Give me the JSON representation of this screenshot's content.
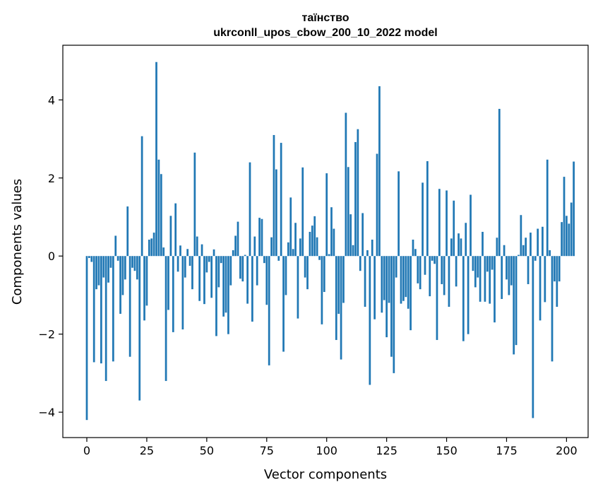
{
  "chart_data": {
    "type": "bar",
    "title": [
      "таїнство",
      "ukrconll_upos_cbow_200_10_2022 model"
    ],
    "xlabel": "Vector components",
    "ylabel": "Components values",
    "xlim": [
      -10,
      209
    ],
    "ylim": [
      -4.65,
      5.4
    ],
    "x_ticks": [
      0,
      25,
      50,
      75,
      100,
      125,
      150,
      175,
      200
    ],
    "y_ticks": [
      -4,
      -2,
      0,
      2,
      4
    ],
    "bar_color": "#1f77b4",
    "grid": false,
    "legend": "none",
    "values": [
      -4.2,
      -0.05,
      -0.15,
      -2.72,
      -0.85,
      -0.75,
      -2.75,
      -0.55,
      -3.2,
      -0.68,
      -0.3,
      -2.7,
      0.52,
      -0.12,
      -1.48,
      -1.0,
      -0.6,
      1.27,
      -2.58,
      -0.3,
      -0.38,
      -0.6,
      -3.7,
      3.07,
      -1.65,
      -1.27,
      0.42,
      0.45,
      0.6,
      4.97,
      2.47,
      2.1,
      0.22,
      -3.2,
      -1.38,
      1.03,
      -1.95,
      1.35,
      -0.4,
      0.27,
      -1.88,
      -0.55,
      0.18,
      -0.25,
      -0.85,
      2.65,
      0.5,
      -1.15,
      0.3,
      -1.23,
      -0.42,
      -0.15,
      -1.07,
      0.17,
      -2.05,
      -0.8,
      -0.18,
      -1.55,
      -1.45,
      -2.0,
      -0.75,
      0.15,
      0.52,
      0.88,
      -0.58,
      -0.65,
      0.03,
      -1.22,
      2.4,
      -1.68,
      0.5,
      -0.75,
      0.98,
      0.95,
      -0.18,
      -1.25,
      -2.8,
      0.48,
      3.1,
      2.22,
      -0.12,
      2.9,
      -2.45,
      -1.0,
      0.35,
      1.5,
      0.18,
      0.85,
      -1.6,
      0.45,
      2.27,
      -0.55,
      -0.85,
      0.62,
      0.78,
      1.02,
      0.48,
      -0.1,
      -1.75,
      -0.92,
      2.12,
      0.05,
      1.25,
      0.7,
      -2.15,
      -1.48,
      -2.65,
      -1.2,
      3.67,
      2.28,
      1.07,
      0.28,
      2.92,
      3.25,
      -0.38,
      1.1,
      -1.3,
      0.15,
      -3.3,
      0.42,
      -1.62,
      2.62,
      4.35,
      -1.45,
      -1.13,
      -2.08,
      -1.2,
      -2.58,
      -3.0,
      -0.55,
      2.17,
      -1.22,
      -1.15,
      -1.05,
      -1.35,
      -1.9,
      0.42,
      0.18,
      -0.7,
      -0.85,
      1.88,
      -0.48,
      2.43,
      -1.03,
      -0.12,
      -0.2,
      -2.15,
      1.72,
      -0.72,
      -1.0,
      1.68,
      -1.3,
      0.45,
      1.42,
      -0.78,
      0.58,
      0.45,
      -2.18,
      0.85,
      -2.0,
      1.57,
      -0.38,
      -0.8,
      -0.55,
      -1.17,
      0.62,
      -1.17,
      -0.4,
      -1.22,
      -0.35,
      -1.7,
      0.47,
      3.77,
      -1.1,
      0.28,
      -0.6,
      -1.0,
      -0.75,
      -2.52,
      -2.28,
      0.03,
      1.05,
      0.28,
      0.47,
      -0.72,
      0.6,
      -4.15,
      -0.12,
      0.7,
      -1.65,
      0.75,
      -1.18,
      2.47,
      0.15,
      -2.7,
      -0.65,
      -1.3,
      -0.65,
      0.87,
      2.03,
      1.03,
      0.83,
      1.37,
      2.42
    ]
  }
}
